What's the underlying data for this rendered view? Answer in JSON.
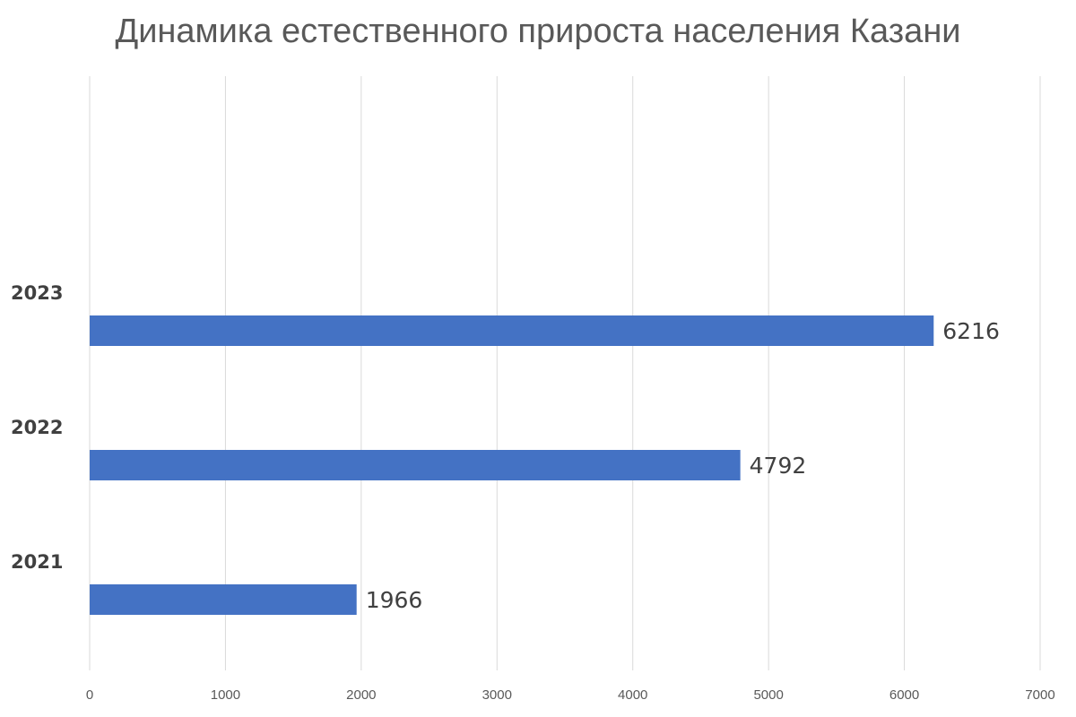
{
  "chart_data": {
    "type": "bar",
    "orientation": "horizontal",
    "title": "Динамика естественного прироста населения Казани",
    "categories": [
      "2021",
      "2022",
      "2023"
    ],
    "values": [
      1966,
      4792,
      6216
    ],
    "xlim": [
      0,
      7000
    ],
    "xticks": [
      "0",
      "1000",
      "2000",
      "3000",
      "4000",
      "5000",
      "6000",
      "7000"
    ],
    "xlabel": "",
    "ylabel": "",
    "grid": true,
    "legend": "none",
    "bar_color": "#4472C4",
    "grid_color": "#D9D9D9",
    "text_color": "#595959"
  }
}
